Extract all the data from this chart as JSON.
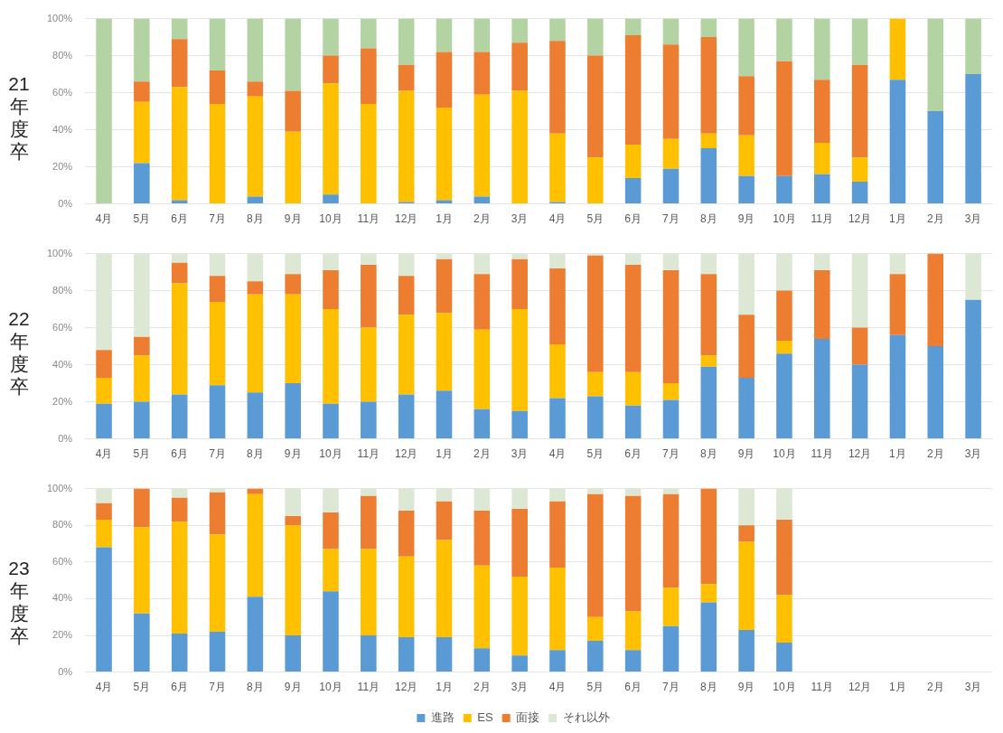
{
  "chart_data": [
    {
      "type": "bar",
      "stacked": true,
      "ylabel": "21年度卒",
      "categories": [
        "4月",
        "5月",
        "6月",
        "7月",
        "8月",
        "9月",
        "10月",
        "11月",
        "12月",
        "1月",
        "2月",
        "3月",
        "4月",
        "5月",
        "6月",
        "7月",
        "8月",
        "9月",
        "10月",
        "11月",
        "12月",
        "1月",
        "2月",
        "3月"
      ],
      "series": [
        {
          "color": "#5b9bd5",
          "values": [
            0,
            22,
            2,
            0,
            4,
            0,
            5,
            0,
            1,
            2,
            4,
            0,
            1,
            0,
            14,
            19,
            30,
            15,
            15,
            16,
            12,
            67,
            50,
            70
          ]
        },
        {
          "color": "#ffc000",
          "values": [
            0,
            33,
            61,
            54,
            54,
            39,
            60,
            54,
            60,
            50,
            55,
            61,
            37,
            25,
            18,
            16,
            8,
            22,
            0,
            17,
            13,
            33,
            0,
            0
          ]
        },
        {
          "color": "#ed7d31",
          "values": [
            0,
            11,
            26,
            18,
            8,
            22,
            15,
            30,
            14,
            30,
            23,
            26,
            50,
            55,
            59,
            51,
            52,
            32,
            62,
            34,
            50,
            0,
            0,
            0
          ]
        },
        {
          "color": "#b3d4a2",
          "values": [
            100,
            34,
            11,
            28,
            34,
            39,
            20,
            16,
            25,
            18,
            18,
            13,
            12,
            20,
            9,
            14,
            10,
            31,
            23,
            33,
            25,
            0,
            50,
            30
          ]
        }
      ],
      "ylim": [
        0,
        100
      ],
      "yticks": [
        {
          "value": 0,
          "label": "0%"
        },
        {
          "value": 20,
          "label": "20%"
        },
        {
          "value": 40,
          "label": "40%"
        },
        {
          "value": 60,
          "label": "60%"
        },
        {
          "value": 80,
          "label": "80%"
        },
        {
          "value": 100,
          "label": "100%"
        }
      ],
      "grid": "y",
      "legend": false
    },
    {
      "type": "bar",
      "stacked": true,
      "ylabel": "22年度卒",
      "categories": [
        "4月",
        "5月",
        "6月",
        "7月",
        "8月",
        "9月",
        "10月",
        "11月",
        "12月",
        "1月",
        "2月",
        "3月",
        "4月",
        "5月",
        "6月",
        "7月",
        "8月",
        "9月",
        "10月",
        "11月",
        "12月",
        "1月",
        "2月",
        "3月"
      ],
      "series": [
        {
          "color": "#5b9bd5",
          "values": [
            19,
            20,
            24,
            29,
            25,
            30,
            19,
            20,
            24,
            26,
            16,
            15,
            22,
            23,
            18,
            21,
            39,
            33,
            46,
            54,
            40,
            56,
            50,
            75
          ]
        },
        {
          "color": "#ffc000",
          "values": [
            14,
            25,
            60,
            45,
            53,
            48,
            51,
            40,
            43,
            42,
            43,
            55,
            29,
            13,
            18,
            9,
            6,
            0,
            7,
            0,
            0,
            0,
            0,
            0
          ]
        },
        {
          "color": "#ed7d31",
          "values": [
            15,
            10,
            11,
            14,
            7,
            11,
            21,
            34,
            21,
            29,
            30,
            27,
            41,
            63,
            58,
            61,
            44,
            34,
            27,
            37,
            20,
            33,
            50,
            0
          ]
        },
        {
          "color": "#dce8d4",
          "values": [
            52,
            45,
            5,
            12,
            15,
            11,
            9,
            6,
            12,
            3,
            11,
            3,
            8,
            1,
            6,
            9,
            11,
            33,
            20,
            9,
            40,
            11,
            0,
            25
          ]
        }
      ],
      "ylim": [
        0,
        100
      ],
      "yticks": [
        {
          "value": 0,
          "label": "0%"
        },
        {
          "value": 20,
          "label": "20%"
        },
        {
          "value": 40,
          "label": "40%"
        },
        {
          "value": 60,
          "label": "60%"
        },
        {
          "value": 80,
          "label": "80%"
        },
        {
          "value": 100,
          "label": "100%"
        }
      ],
      "grid": "y",
      "legend": false
    },
    {
      "type": "bar",
      "stacked": true,
      "ylabel": "23年度卒",
      "categories": [
        "4月",
        "5月",
        "6月",
        "7月",
        "8月",
        "9月",
        "10月",
        "11月",
        "12月",
        "1月",
        "2月",
        "3月",
        "4月",
        "5月",
        "6月",
        "7月",
        "8月",
        "9月",
        "10月",
        "11月",
        "12月",
        "1月",
        "2月",
        "3月"
      ],
      "series": [
        {
          "name": "進路",
          "color": "#5b9bd5",
          "values": [
            68,
            32,
            21,
            22,
            41,
            20,
            44,
            20,
            19,
            19,
            13,
            9,
            12,
            17,
            12,
            25,
            38,
            23,
            16,
            null,
            null,
            null,
            null,
            null
          ]
        },
        {
          "name": "ES",
          "color": "#ffc000",
          "values": [
            15,
            47,
            61,
            53,
            56,
            60,
            23,
            47,
            44,
            53,
            45,
            43,
            45,
            13,
            21,
            21,
            10,
            48,
            26,
            null,
            null,
            null,
            null,
            null
          ]
        },
        {
          "name": "面接",
          "color": "#ed7d31",
          "values": [
            9,
            21,
            13,
            23,
            3,
            5,
            20,
            29,
            25,
            21,
            30,
            37,
            36,
            67,
            63,
            51,
            52,
            9,
            41,
            null,
            null,
            null,
            null,
            null
          ]
        },
        {
          "name": "それ以外",
          "color": "#dce8d4",
          "values": [
            8,
            0,
            5,
            2,
            0,
            15,
            13,
            4,
            12,
            7,
            12,
            11,
            7,
            3,
            4,
            3,
            0,
            20,
            17,
            null,
            null,
            null,
            null,
            null
          ]
        }
      ],
      "ylim": [
        0,
        100
      ],
      "yticks": [
        {
          "value": 0,
          "label": "0%"
        },
        {
          "value": 20,
          "label": "20%"
        },
        {
          "value": 40,
          "label": "40%"
        },
        {
          "value": 60,
          "label": "60%"
        },
        {
          "value": 80,
          "label": "80%"
        },
        {
          "value": 100,
          "label": "100%"
        }
      ],
      "grid": "y",
      "legend": "bottom"
    }
  ]
}
